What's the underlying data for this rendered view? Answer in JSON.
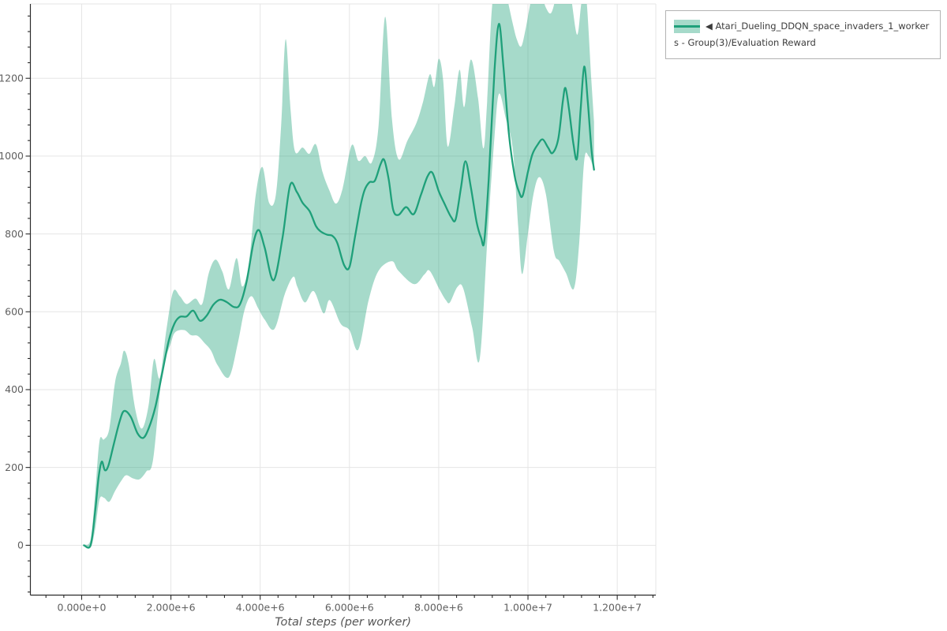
{
  "chart": {
    "legend": {
      "label": "◀ Atari_Dueling_DDQN_space_invaders_1_workers - Group(3)/Evaluation Reward"
    }
  },
  "chart_data": {
    "type": "line",
    "title": "",
    "xlabel": "Total steps (per worker)",
    "ylabel": "",
    "grid": true,
    "legend_position": "top-right",
    "xlim": [
      -1149000,
      12864000
    ],
    "ylim": [
      -128,
      1391
    ],
    "x_ticks": [
      {
        "value": 0,
        "label": "0.000e+0"
      },
      {
        "value": 2000000,
        "label": "2.000e+6"
      },
      {
        "value": 4000000,
        "label": "4.000e+6"
      },
      {
        "value": 6000000,
        "label": "6.000e+6"
      },
      {
        "value": 8000000,
        "label": "8.000e+6"
      },
      {
        "value": 10000000,
        "label": "1.000e+7"
      },
      {
        "value": 12000000,
        "label": "1.200e+7"
      }
    ],
    "x_minor_step": 400000,
    "y_ticks": [
      {
        "value": 0,
        "label": "0"
      },
      {
        "value": 200,
        "label": "200"
      },
      {
        "value": 400,
        "label": "400"
      },
      {
        "value": 600,
        "label": "600"
      },
      {
        "value": 800,
        "label": "800"
      },
      {
        "value": 1000,
        "label": "1000"
      },
      {
        "value": 1200,
        "label": "1200"
      }
    ],
    "y_minor_step": 40,
    "colors": {
      "line": "#1fa07a",
      "band": "rgba(32,162,122,0.40)",
      "grid": "#e5e5e5",
      "spine": "#2b2b2b",
      "tick_label": "#5f5f5f",
      "axis_title": "#555555"
    },
    "series": [
      {
        "name": "Atari_Dueling_DDQN_space_invaders_1_workers - Group(3)/Evaluation Reward",
        "mean": [
          [
            50000,
            0
          ],
          [
            200000,
            0
          ],
          [
            300000,
            85
          ],
          [
            380000,
            175
          ],
          [
            450000,
            215
          ],
          [
            520000,
            193
          ],
          [
            600000,
            205
          ],
          [
            720000,
            260
          ],
          [
            850000,
            318
          ],
          [
            950000,
            345
          ],
          [
            1100000,
            330
          ],
          [
            1250000,
            288
          ],
          [
            1380000,
            276
          ],
          [
            1500000,
            300
          ],
          [
            1650000,
            355
          ],
          [
            1800000,
            440
          ],
          [
            1950000,
            525
          ],
          [
            2080000,
            570
          ],
          [
            2200000,
            587
          ],
          [
            2350000,
            588
          ],
          [
            2500000,
            603
          ],
          [
            2650000,
            577
          ],
          [
            2800000,
            590
          ],
          [
            2950000,
            618
          ],
          [
            3100000,
            631
          ],
          [
            3250000,
            625
          ],
          [
            3420000,
            612
          ],
          [
            3550000,
            620
          ],
          [
            3700000,
            680
          ],
          [
            3850000,
            778
          ],
          [
            3970000,
            810
          ],
          [
            4100000,
            765
          ],
          [
            4300000,
            681
          ],
          [
            4500000,
            790
          ],
          [
            4670000,
            925
          ],
          [
            4820000,
            908
          ],
          [
            4950000,
            880
          ],
          [
            5110000,
            858
          ],
          [
            5250000,
            820
          ],
          [
            5360000,
            806
          ],
          [
            5500000,
            798
          ],
          [
            5620000,
            795
          ],
          [
            5730000,
            776
          ],
          [
            5880000,
            720
          ],
          [
            6000000,
            715
          ],
          [
            6120000,
            790
          ],
          [
            6250000,
            873
          ],
          [
            6340000,
            913
          ],
          [
            6450000,
            933
          ],
          [
            6570000,
            937
          ],
          [
            6700000,
            980
          ],
          [
            6780000,
            990
          ],
          [
            6880000,
            940
          ],
          [
            6980000,
            862
          ],
          [
            7100000,
            849
          ],
          [
            7270000,
            869
          ],
          [
            7440000,
            851
          ],
          [
            7600000,
            900
          ],
          [
            7750000,
            948
          ],
          [
            7860000,
            957
          ],
          [
            8000000,
            910
          ],
          [
            8120000,
            880
          ],
          [
            8280000,
            843
          ],
          [
            8380000,
            838
          ],
          [
            8500000,
            920
          ],
          [
            8600000,
            987
          ],
          [
            8720000,
            920
          ],
          [
            8850000,
            830
          ],
          [
            8950000,
            790
          ],
          [
            9020000,
            781
          ],
          [
            9120000,
            940
          ],
          [
            9250000,
            1220
          ],
          [
            9350000,
            1340
          ],
          [
            9450000,
            1230
          ],
          [
            9570000,
            1060
          ],
          [
            9700000,
            950
          ],
          [
            9800000,
            908
          ],
          [
            9880000,
            898
          ],
          [
            10000000,
            960
          ],
          [
            10100000,
            1005
          ],
          [
            10220000,
            1030
          ],
          [
            10330000,
            1043
          ],
          [
            10450000,
            1022
          ],
          [
            10550000,
            1008
          ],
          [
            10680000,
            1045
          ],
          [
            10780000,
            1140
          ],
          [
            10840000,
            1175
          ],
          [
            10920000,
            1120
          ],
          [
            11020000,
            1030
          ],
          [
            11100000,
            995
          ],
          [
            11180000,
            1120
          ],
          [
            11260000,
            1230
          ],
          [
            11340000,
            1140
          ],
          [
            11420000,
            1020
          ],
          [
            11480000,
            965
          ]
        ],
        "band_upper": [
          [
            50000,
            2
          ],
          [
            200000,
            15
          ],
          [
            300000,
            130
          ],
          [
            400000,
            268
          ],
          [
            500000,
            272
          ],
          [
            620000,
            300
          ],
          [
            750000,
            420
          ],
          [
            880000,
            468
          ],
          [
            950000,
            500
          ],
          [
            1050000,
            468
          ],
          [
            1200000,
            350
          ],
          [
            1350000,
            300
          ],
          [
            1500000,
            360
          ],
          [
            1620000,
            478
          ],
          [
            1750000,
            430
          ],
          [
            1900000,
            555
          ],
          [
            2050000,
            652
          ],
          [
            2200000,
            640
          ],
          [
            2350000,
            620
          ],
          [
            2550000,
            634
          ],
          [
            2700000,
            620
          ],
          [
            2850000,
            700
          ],
          [
            3000000,
            734
          ],
          [
            3150000,
            704
          ],
          [
            3300000,
            658
          ],
          [
            3470000,
            738
          ],
          [
            3600000,
            665
          ],
          [
            3750000,
            728
          ],
          [
            3900000,
            900
          ],
          [
            4050000,
            972
          ],
          [
            4200000,
            880
          ],
          [
            4350000,
            900
          ],
          [
            4470000,
            1080
          ],
          [
            4570000,
            1300
          ],
          [
            4680000,
            1120
          ],
          [
            4780000,
            1012
          ],
          [
            4950000,
            1022
          ],
          [
            5100000,
            1006
          ],
          [
            5250000,
            1030
          ],
          [
            5400000,
            958
          ],
          [
            5550000,
            912
          ],
          [
            5700000,
            878
          ],
          [
            5850000,
            918
          ],
          [
            6050000,
            1028
          ],
          [
            6200000,
            988
          ],
          [
            6350000,
            1000
          ],
          [
            6500000,
            984
          ],
          [
            6650000,
            1075
          ],
          [
            6800000,
            1358
          ],
          [
            6950000,
            1098
          ],
          [
            7100000,
            992
          ],
          [
            7300000,
            1040
          ],
          [
            7500000,
            1085
          ],
          [
            7650000,
            1140
          ],
          [
            7800000,
            1210
          ],
          [
            7900000,
            1178
          ],
          [
            8000000,
            1250
          ],
          [
            8100000,
            1195
          ],
          [
            8200000,
            1025
          ],
          [
            8350000,
            1128
          ],
          [
            8470000,
            1222
          ],
          [
            8570000,
            1126
          ],
          [
            8720000,
            1248
          ],
          [
            8880000,
            1150
          ],
          [
            9000000,
            1020
          ],
          [
            9080000,
            1130
          ],
          [
            9200000,
            1390
          ],
          [
            9350000,
            1460
          ],
          [
            9500000,
            1420
          ],
          [
            9650000,
            1345
          ],
          [
            9750000,
            1300
          ],
          [
            9850000,
            1282
          ],
          [
            9950000,
            1328
          ],
          [
            10100000,
            1415
          ],
          [
            10250000,
            1428
          ],
          [
            10400000,
            1382
          ],
          [
            10520000,
            1368
          ],
          [
            10650000,
            1415
          ],
          [
            10800000,
            1445
          ],
          [
            10950000,
            1415
          ],
          [
            11100000,
            1312
          ],
          [
            11200000,
            1395
          ],
          [
            11300000,
            1415
          ],
          [
            11420000,
            1195
          ],
          [
            11480000,
            1088
          ]
        ],
        "band_lower": [
          [
            50000,
            -2
          ],
          [
            200000,
            -5
          ],
          [
            300000,
            40
          ],
          [
            400000,
            118
          ],
          [
            500000,
            122
          ],
          [
            620000,
            112
          ],
          [
            750000,
            140
          ],
          [
            900000,
            168
          ],
          [
            1000000,
            180
          ],
          [
            1150000,
            172
          ],
          [
            1300000,
            170
          ],
          [
            1450000,
            190
          ],
          [
            1600000,
            220
          ],
          [
            1800000,
            438
          ],
          [
            2000000,
            520
          ],
          [
            2100000,
            548
          ],
          [
            2300000,
            553
          ],
          [
            2450000,
            540
          ],
          [
            2600000,
            538
          ],
          [
            2750000,
            520
          ],
          [
            2900000,
            500
          ],
          [
            3050000,
            462
          ],
          [
            3300000,
            432
          ],
          [
            3500000,
            520
          ],
          [
            3650000,
            605
          ],
          [
            3800000,
            640
          ],
          [
            3950000,
            610
          ],
          [
            4100000,
            580
          ],
          [
            4320000,
            556
          ],
          [
            4550000,
            645
          ],
          [
            4740000,
            690
          ],
          [
            4830000,
            665
          ],
          [
            5000000,
            624
          ],
          [
            5200000,
            653
          ],
          [
            5420000,
            596
          ],
          [
            5560000,
            630
          ],
          [
            5800000,
            570
          ],
          [
            6000000,
            553
          ],
          [
            6200000,
            503
          ],
          [
            6430000,
            630
          ],
          [
            6650000,
            705
          ],
          [
            6950000,
            730
          ],
          [
            7100000,
            705
          ],
          [
            7450000,
            671
          ],
          [
            7680000,
            696
          ],
          [
            7800000,
            705
          ],
          [
            8020000,
            657
          ],
          [
            8160000,
            630
          ],
          [
            8250000,
            624
          ],
          [
            8420000,
            664
          ],
          [
            8550000,
            660
          ],
          [
            8750000,
            560
          ],
          [
            8920000,
            480
          ],
          [
            9100000,
            805
          ],
          [
            9250000,
            1050
          ],
          [
            9350000,
            1160
          ],
          [
            9500000,
            1098
          ],
          [
            9660000,
            1018
          ],
          [
            9780000,
            820
          ],
          [
            9870000,
            697
          ],
          [
            10000000,
            802
          ],
          [
            10120000,
            900
          ],
          [
            10250000,
            946
          ],
          [
            10400000,
            903
          ],
          [
            10580000,
            756
          ],
          [
            10700000,
            731
          ],
          [
            10850000,
            700
          ],
          [
            11030000,
            660
          ],
          [
            11150000,
            780
          ],
          [
            11260000,
            988
          ],
          [
            11360000,
            1000
          ],
          [
            11480000,
            966
          ]
        ]
      }
    ]
  }
}
